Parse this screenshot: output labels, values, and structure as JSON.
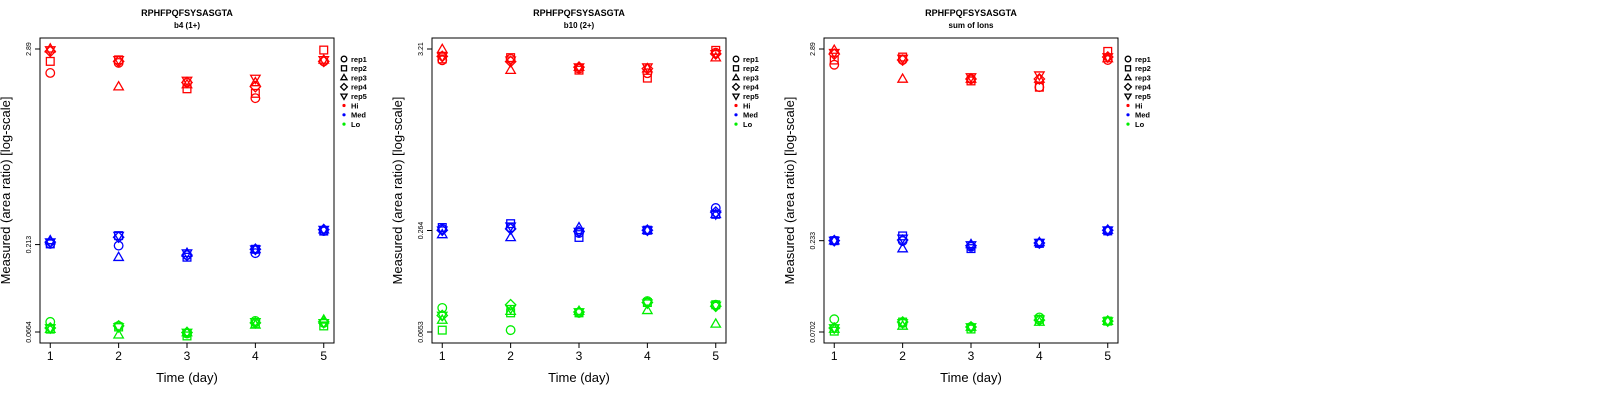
{
  "colors": {
    "Hi": "#ff0000",
    "Med": "#0000ff",
    "Lo": "#00ee00",
    "axis": "#000000"
  },
  "legend": [
    {
      "label": "rep1",
      "shape": "circle"
    },
    {
      "label": "rep2",
      "shape": "square"
    },
    {
      "label": "rep3",
      "shape": "triangle-up"
    },
    {
      "label": "rep4",
      "shape": "diamond"
    },
    {
      "label": "rep5",
      "shape": "triangle-down"
    },
    {
      "label": "Hi",
      "shape": "dot",
      "group": "Hi"
    },
    {
      "label": "Med",
      "shape": "dot",
      "group": "Med"
    },
    {
      "label": "Lo",
      "shape": "dot",
      "group": "Lo"
    }
  ],
  "chart_data": [
    {
      "type": "scatter",
      "title": "RPHFPQFSYSASGTA",
      "subtitle": "b4 (1+)",
      "xlabel": "Time (day)",
      "ylabel": "Measured (area ratio) [log-scale]",
      "yscale": "log",
      "xlim": [
        0.85,
        5.15
      ],
      "ylim": [
        0.0664,
        2.89
      ],
      "x_ticks": [
        1,
        2,
        3,
        4,
        5
      ],
      "y_ticks": [
        "0.0664",
        "0.213",
        "2.89"
      ],
      "series": [
        {
          "group": "Hi",
          "rep": "rep1",
          "x": [
            1,
            2,
            3,
            4,
            5
          ],
          "y": [
            2.1,
            2.4,
            1.85,
            1.5,
            2.45
          ]
        },
        {
          "group": "Hi",
          "rep": "rep2",
          "x": [
            1,
            2,
            3,
            4,
            5
          ],
          "y": [
            2.45,
            2.5,
            1.7,
            1.6,
            2.85
          ]
        },
        {
          "group": "Hi",
          "rep": "rep3",
          "x": [
            1,
            2,
            3,
            4,
            5
          ],
          "y": [
            2.9,
            1.75,
            1.8,
            1.85,
            2.5
          ]
        },
        {
          "group": "Hi",
          "rep": "rep4",
          "x": [
            1,
            2,
            3,
            4,
            5
          ],
          "y": [
            2.8,
            2.45,
            1.85,
            1.75,
            2.45
          ]
        },
        {
          "group": "Hi",
          "rep": "rep5",
          "x": [
            1,
            2,
            3,
            4,
            5
          ],
          "y": [
            2.85,
            2.5,
            1.9,
            1.95,
            2.5
          ]
        },
        {
          "group": "Med",
          "rep": "rep1",
          "x": [
            1,
            2,
            3,
            4,
            5
          ],
          "y": [
            0.215,
            0.21,
            0.185,
            0.19,
            0.255
          ]
        },
        {
          "group": "Med",
          "rep": "rep2",
          "x": [
            1,
            2,
            3,
            4,
            5
          ],
          "y": [
            0.215,
            0.24,
            0.18,
            0.2,
            0.255
          ]
        },
        {
          "group": "Med",
          "rep": "rep3",
          "x": [
            1,
            2,
            3,
            4,
            5
          ],
          "y": [
            0.225,
            0.18,
            0.19,
            0.2,
            0.26
          ]
        },
        {
          "group": "Med",
          "rep": "rep4",
          "x": [
            1,
            2,
            3,
            4,
            5
          ],
          "y": [
            0.22,
            0.235,
            0.185,
            0.2,
            0.26
          ]
        },
        {
          "group": "Med",
          "rep": "rep5",
          "x": [
            1,
            2,
            3,
            4,
            5
          ],
          "y": [
            0.22,
            0.24,
            0.19,
            0.2,
            0.26
          ]
        },
        {
          "group": "Lo",
          "rep": "rep1",
          "x": [
            1,
            2,
            3,
            4,
            5
          ],
          "y": [
            0.076,
            0.072,
            0.065,
            0.077,
            0.075
          ]
        },
        {
          "group": "Lo",
          "rep": "rep2",
          "x": [
            1,
            2,
            3,
            4,
            5
          ],
          "y": [
            0.069,
            0.071,
            0.063,
            0.074,
            0.072
          ]
        },
        {
          "group": "Lo",
          "rep": "rep3",
          "x": [
            1,
            2,
            3,
            4,
            5
          ],
          "y": [
            0.069,
            0.064,
            0.066,
            0.073,
            0.078
          ]
        },
        {
          "group": "Lo",
          "rep": "rep4",
          "x": [
            1,
            2,
            3,
            4,
            5
          ],
          "y": [
            0.07,
            0.072,
            0.066,
            0.075,
            0.076
          ]
        },
        {
          "group": "Lo",
          "rep": "rep5",
          "x": [
            1,
            2,
            3,
            4,
            5
          ],
          "y": [
            0.07,
            0.071,
            0.066,
            0.076,
            0.075
          ]
        }
      ]
    },
    {
      "type": "scatter",
      "title": "RPHFPQFSYSASGTA",
      "subtitle": "b10 (2+)",
      "xlabel": "Time (day)",
      "ylabel": "Measured (area ratio) [log-scale]",
      "yscale": "log",
      "xlim": [
        0.85,
        5.15
      ],
      "ylim": [
        0.0653,
        3.21
      ],
      "x_ticks": [
        1,
        2,
        3,
        4,
        5
      ],
      "y_ticks": [
        "0.0653",
        "0.264",
        "3.21"
      ],
      "series": [
        {
          "group": "Hi",
          "rep": "rep1",
          "x": [
            1,
            2,
            3,
            4,
            5
          ],
          "y": [
            2.75,
            2.8,
            2.45,
            2.3,
            3.05
          ]
        },
        {
          "group": "Hi",
          "rep": "rep2",
          "x": [
            1,
            2,
            3,
            4,
            5
          ],
          "y": [
            2.8,
            2.85,
            2.4,
            2.15,
            3.15
          ]
        },
        {
          "group": "Hi",
          "rep": "rep3",
          "x": [
            1,
            2,
            3,
            4,
            5
          ],
          "y": [
            3.2,
            2.4,
            2.5,
            2.45,
            2.85
          ]
        },
        {
          "group": "Hi",
          "rep": "rep4",
          "x": [
            1,
            2,
            3,
            4,
            5
          ],
          "y": [
            2.9,
            2.7,
            2.5,
            2.45,
            3.0
          ]
        },
        {
          "group": "Hi",
          "rep": "rep5",
          "x": [
            1,
            2,
            3,
            4,
            5
          ],
          "y": [
            2.9,
            2.75,
            2.5,
            2.5,
            3.0
          ]
        },
        {
          "group": "Med",
          "rep": "rep1",
          "x": [
            1,
            2,
            3,
            4,
            5
          ],
          "y": [
            0.27,
            0.275,
            0.255,
            0.265,
            0.36
          ]
        },
        {
          "group": "Med",
          "rep": "rep2",
          "x": [
            1,
            2,
            3,
            4,
            5
          ],
          "y": [
            0.275,
            0.29,
            0.24,
            0.265,
            0.33
          ]
        },
        {
          "group": "Med",
          "rep": "rep3",
          "x": [
            1,
            2,
            3,
            4,
            5
          ],
          "y": [
            0.25,
            0.24,
            0.275,
            0.265,
            0.33
          ]
        },
        {
          "group": "Med",
          "rep": "rep4",
          "x": [
            1,
            2,
            3,
            4,
            5
          ],
          "y": [
            0.265,
            0.27,
            0.26,
            0.265,
            0.34
          ]
        },
        {
          "group": "Med",
          "rep": "rep5",
          "x": [
            1,
            2,
            3,
            4,
            5
          ],
          "y": [
            0.265,
            0.28,
            0.26,
            0.265,
            0.33
          ]
        },
        {
          "group": "Lo",
          "rep": "rep1",
          "x": [
            1,
            2,
            3,
            4,
            5
          ],
          "y": [
            0.091,
            0.067,
            0.085,
            0.1,
            0.095
          ]
        },
        {
          "group": "Lo",
          "rep": "rep2",
          "x": [
            1,
            2,
            3,
            4,
            5
          ],
          "y": [
            0.067,
            0.085,
            0.085,
            0.098,
            0.095
          ]
        },
        {
          "group": "Lo",
          "rep": "rep3",
          "x": [
            1,
            2,
            3,
            4,
            5
          ],
          "y": [
            0.077,
            0.087,
            0.087,
            0.088,
            0.073
          ]
        },
        {
          "group": "Lo",
          "rep": "rep4",
          "x": [
            1,
            2,
            3,
            4,
            5
          ],
          "y": [
            0.082,
            0.095,
            0.086,
            0.098,
            0.093
          ]
        },
        {
          "group": "Lo",
          "rep": "rep5",
          "x": [
            1,
            2,
            3,
            4,
            5
          ],
          "y": [
            0.082,
            0.09,
            0.086,
            0.097,
            0.094
          ]
        }
      ]
    },
    {
      "type": "scatter",
      "title": "RPHFPQFSYSASGTA",
      "subtitle": "sum of Ions",
      "xlabel": "Time (day)",
      "ylabel": "Measured (area ratio) [log-scale]",
      "yscale": "log",
      "xlim": [
        0.85,
        5.15
      ],
      "ylim": [
        0.0702,
        2.89
      ],
      "x_ticks": [
        1,
        2,
        3,
        4,
        5
      ],
      "y_ticks": [
        "0.0702",
        "0.233",
        "2.89"
      ],
      "series": [
        {
          "group": "Hi",
          "rep": "rep1",
          "x": [
            1,
            2,
            3,
            4,
            5
          ],
          "y": [
            2.35,
            2.5,
            1.95,
            1.75,
            2.5
          ]
        },
        {
          "group": "Hi",
          "rep": "rep2",
          "x": [
            1,
            2,
            3,
            4,
            5
          ],
          "y": [
            2.5,
            2.6,
            1.9,
            1.75,
            2.8
          ]
        },
        {
          "group": "Hi",
          "rep": "rep3",
          "x": [
            1,
            2,
            3,
            4,
            5
          ],
          "y": [
            2.85,
            1.95,
            1.95,
            1.95,
            2.55
          ]
        },
        {
          "group": "Hi",
          "rep": "rep4",
          "x": [
            1,
            2,
            3,
            4,
            5
          ],
          "y": [
            2.7,
            2.5,
            1.95,
            1.95,
            2.6
          ]
        },
        {
          "group": "Hi",
          "rep": "rep5",
          "x": [
            1,
            2,
            3,
            4,
            5
          ],
          "y": [
            2.75,
            2.55,
            2.0,
            2.05,
            2.6
          ]
        },
        {
          "group": "Med",
          "rep": "rep1",
          "x": [
            1,
            2,
            3,
            4,
            5
          ],
          "y": [
            0.233,
            0.232,
            0.215,
            0.225,
            0.265
          ]
        },
        {
          "group": "Med",
          "rep": "rep2",
          "x": [
            1,
            2,
            3,
            4,
            5
          ],
          "y": [
            0.233,
            0.248,
            0.21,
            0.225,
            0.265
          ]
        },
        {
          "group": "Med",
          "rep": "rep3",
          "x": [
            1,
            2,
            3,
            4,
            5
          ],
          "y": [
            0.233,
            0.21,
            0.222,
            0.228,
            0.268
          ]
        },
        {
          "group": "Med",
          "rep": "rep4",
          "x": [
            1,
            2,
            3,
            4,
            5
          ],
          "y": [
            0.233,
            0.235,
            0.218,
            0.226,
            0.267
          ]
        },
        {
          "group": "Med",
          "rep": "rep5",
          "x": [
            1,
            2,
            3,
            4,
            5
          ],
          "y": [
            0.233,
            0.24,
            0.22,
            0.227,
            0.267
          ]
        },
        {
          "group": "Lo",
          "rep": "rep1",
          "x": [
            1,
            2,
            3,
            4,
            5
          ],
          "y": [
            0.083,
            0.079,
            0.075,
            0.085,
            0.081
          ]
        },
        {
          "group": "Lo",
          "rep": "rep2",
          "x": [
            1,
            2,
            3,
            4,
            5
          ],
          "y": [
            0.071,
            0.08,
            0.073,
            0.083,
            0.081
          ]
        },
        {
          "group": "Lo",
          "rep": "rep3",
          "x": [
            1,
            2,
            3,
            4,
            5
          ],
          "y": [
            0.073,
            0.076,
            0.075,
            0.08,
            0.081
          ]
        },
        {
          "group": "Lo",
          "rep": "rep4",
          "x": [
            1,
            2,
            3,
            4,
            5
          ],
          "y": [
            0.074,
            0.08,
            0.075,
            0.082,
            0.081
          ]
        },
        {
          "group": "Lo",
          "rep": "rep5",
          "x": [
            1,
            2,
            3,
            4,
            5
          ],
          "y": [
            0.074,
            0.079,
            0.075,
            0.083,
            0.081
          ]
        }
      ]
    }
  ]
}
